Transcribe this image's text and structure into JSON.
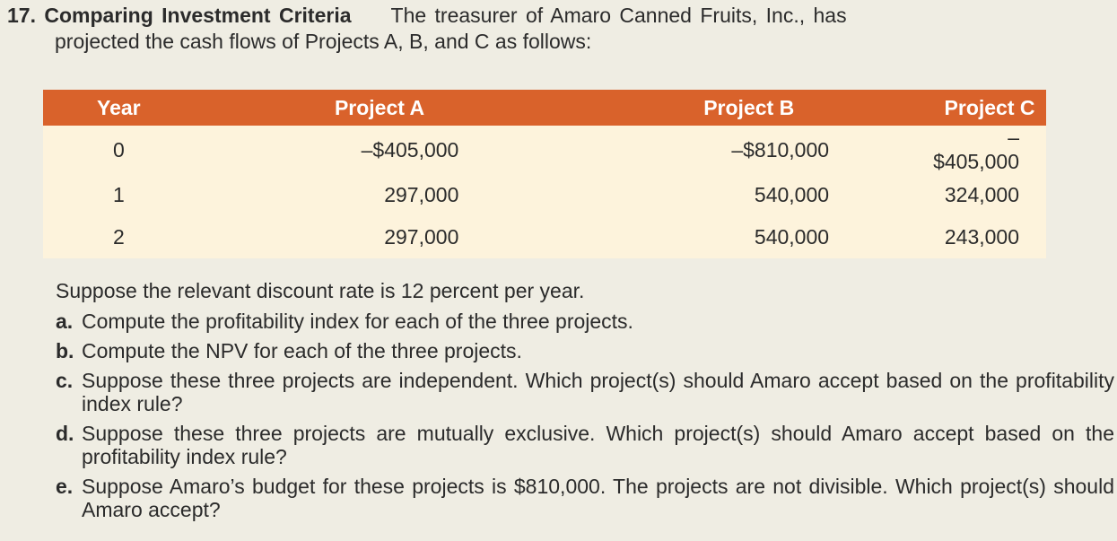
{
  "problem": {
    "number": "17.",
    "title": "Comparing Investment Criteria",
    "intro_line1": "The treasurer of Amaro Canned Fruits, Inc., has",
    "intro_line2": "projected the cash flows of Projects A, B, and C as follows:"
  },
  "table": {
    "headers": [
      "Year",
      "Project A",
      "Project B",
      "Project C"
    ],
    "rows": [
      [
        "0",
        "–$405,000",
        "–$810,000",
        "–$405,000"
      ],
      [
        "1",
        "297,000",
        "540,000",
        "324,000"
      ],
      [
        "2",
        "297,000",
        "540,000",
        "243,000"
      ]
    ]
  },
  "questions": {
    "intro": "Suppose the relevant discount rate is 12 percent per year.",
    "items": [
      {
        "letter": "a.",
        "text": "Compute the profitability index for each of the three projects."
      },
      {
        "letter": "b.",
        "text": "Compute the NPV for each of the three projects."
      },
      {
        "letter": "c.",
        "text": "Suppose these three projects are independent. Which project(s) should Amaro accept based on the profitability index rule?"
      },
      {
        "letter": "d.",
        "text": "Suppose these three projects are mutually exclusive. Which project(s) should Amaro accept based on the profitability index rule?"
      },
      {
        "letter": "e.",
        "text": "Suppose Amaro’s budget for these projects is $810,000. The projects are not divisible. Which project(s) should Amaro accept?"
      }
    ]
  },
  "colors": {
    "page_background": "#efede3",
    "header_background": "#d9622b",
    "row_background": "#fdf3dc",
    "text": "#2b2b2b"
  }
}
